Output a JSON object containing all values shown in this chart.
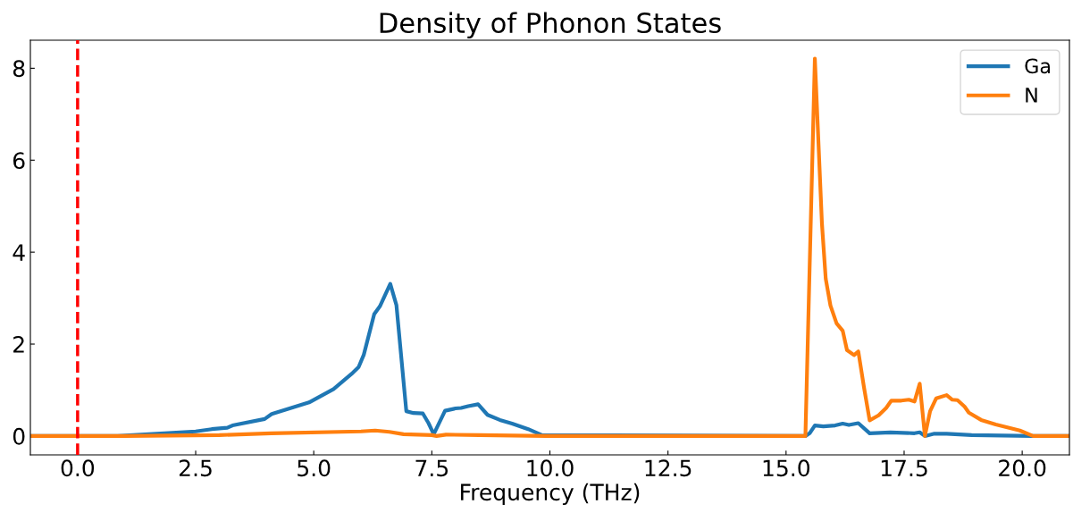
{
  "chart_data": {
    "type": "line",
    "title": "Density of Phonon States",
    "xlabel": "Frequency (THz)",
    "series": [
      {
        "name": "Ga",
        "color": "#1f77b4",
        "x": [
          -1,
          0.85,
          2.5,
          2.84,
          3.17,
          3.28,
          3.96,
          4.11,
          4.9,
          5.42,
          5.8,
          5.95,
          6.06,
          6.28,
          6.4,
          6.62,
          6.75,
          6.96,
          7.11,
          7.31,
          7.43,
          7.54,
          7.78,
          8.0,
          8.12,
          8.27,
          8.48,
          8.68,
          8.94,
          9.2,
          9.54,
          9.83,
          15.41,
          15.5,
          15.61,
          15.79,
          16.04,
          16.2,
          16.33,
          16.53,
          16.77,
          17.21,
          17.72,
          17.83,
          17.94,
          18.14,
          18.4,
          18.93,
          20.23,
          21
        ],
        "values": [
          0,
          0,
          0.1,
          0.15,
          0.18,
          0.23,
          0.37,
          0.48,
          0.73,
          1.02,
          1.35,
          1.5,
          1.77,
          2.65,
          2.82,
          3.31,
          2.85,
          0.54,
          0.5,
          0.49,
          0.28,
          0.04,
          0.55,
          0.6,
          0.61,
          0.65,
          0.69,
          0.46,
          0.35,
          0.27,
          0.15,
          0.02,
          0,
          0.06,
          0.23,
          0.21,
          0.23,
          0.27,
          0.24,
          0.28,
          0.06,
          0.08,
          0.06,
          0.08,
          0,
          0.05,
          0.05,
          0.02,
          0,
          0
        ]
      },
      {
        "name": "N",
        "color": "#ff7f0e",
        "x": [
          -1,
          1,
          3,
          4.1,
          6.0,
          6.3,
          6.6,
          6.9,
          7.5,
          7.6,
          7.8,
          8.5,
          9.9,
          15.41,
          15.61,
          15.76,
          15.84,
          15.94,
          16.07,
          16.2,
          16.29,
          16.44,
          16.53,
          16.65,
          16.77,
          16.96,
          17.12,
          17.23,
          17.44,
          17.6,
          17.72,
          17.83,
          17.94,
          18.05,
          18.18,
          18.4,
          18.52,
          18.63,
          18.78,
          18.87,
          19.13,
          19.44,
          19.95,
          20.23,
          21
        ],
        "values": [
          0,
          0,
          0.02,
          0.06,
          0.1,
          0.12,
          0.09,
          0.04,
          0.02,
          0,
          0.03,
          0.02,
          0,
          0,
          8.21,
          4.62,
          3.42,
          2.84,
          2.45,
          2.29,
          1.87,
          1.76,
          1.84,
          1.06,
          0.34,
          0.45,
          0.61,
          0.77,
          0.77,
          0.79,
          0.75,
          1.14,
          0,
          0.54,
          0.82,
          0.89,
          0.79,
          0.78,
          0.64,
          0.51,
          0.35,
          0.25,
          0.12,
          0,
          0
        ]
      }
    ],
    "xlim": [
      -1,
      21
    ],
    "ylim": [
      -0.41,
      8.61
    ],
    "xticks": [
      {
        "value": 0,
        "label": "0.0"
      },
      {
        "value": 2.5,
        "label": "2.5"
      },
      {
        "value": 5,
        "label": "5.0"
      },
      {
        "value": 7.5,
        "label": "7.5"
      },
      {
        "value": 10,
        "label": "10.0"
      },
      {
        "value": 12.5,
        "label": "12.5"
      },
      {
        "value": 15,
        "label": "15.0"
      },
      {
        "value": 17.5,
        "label": "17.5"
      },
      {
        "value": 20,
        "label": "20.0"
      }
    ],
    "yticks": [
      0,
      2,
      4,
      6,
      8
    ],
    "ref_lines": [
      {
        "axis": "x",
        "value": 0,
        "color": "#ff0000",
        "line_style": "dashed"
      }
    ],
    "legend": "top right",
    "grid": false,
    "marker": "none",
    "line_style": "solid"
  }
}
